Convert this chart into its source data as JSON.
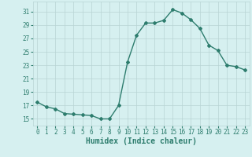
{
  "x": [
    0,
    1,
    2,
    3,
    4,
    5,
    6,
    7,
    8,
    9,
    10,
    11,
    12,
    13,
    14,
    15,
    16,
    17,
    18,
    19,
    20,
    21,
    22,
    23
  ],
  "y": [
    17.5,
    16.8,
    16.5,
    15.8,
    15.7,
    15.6,
    15.5,
    15.0,
    15.0,
    17.0,
    23.5,
    27.5,
    29.3,
    29.3,
    29.7,
    31.3,
    30.8,
    29.8,
    28.5,
    26.0,
    25.2,
    23.0,
    22.8,
    22.3
  ],
  "line_color": "#2e7d6e",
  "marker": "D",
  "marker_size": 2,
  "bg_color": "#d6f0f0",
  "grid_color": "#b8d4d4",
  "xlabel": "Humidex (Indice chaleur)",
  "xlabel_fontsize": 7,
  "xlim": [
    -0.5,
    23.5
  ],
  "ylim": [
    14.0,
    32.5
  ],
  "yticks": [
    15,
    17,
    19,
    21,
    23,
    25,
    27,
    29,
    31
  ],
  "xticks": [
    0,
    1,
    2,
    3,
    4,
    5,
    6,
    7,
    8,
    9,
    10,
    11,
    12,
    13,
    14,
    15,
    16,
    17,
    18,
    19,
    20,
    21,
    22,
    23
  ],
  "tick_fontsize": 5.5,
  "line_width": 1.0
}
